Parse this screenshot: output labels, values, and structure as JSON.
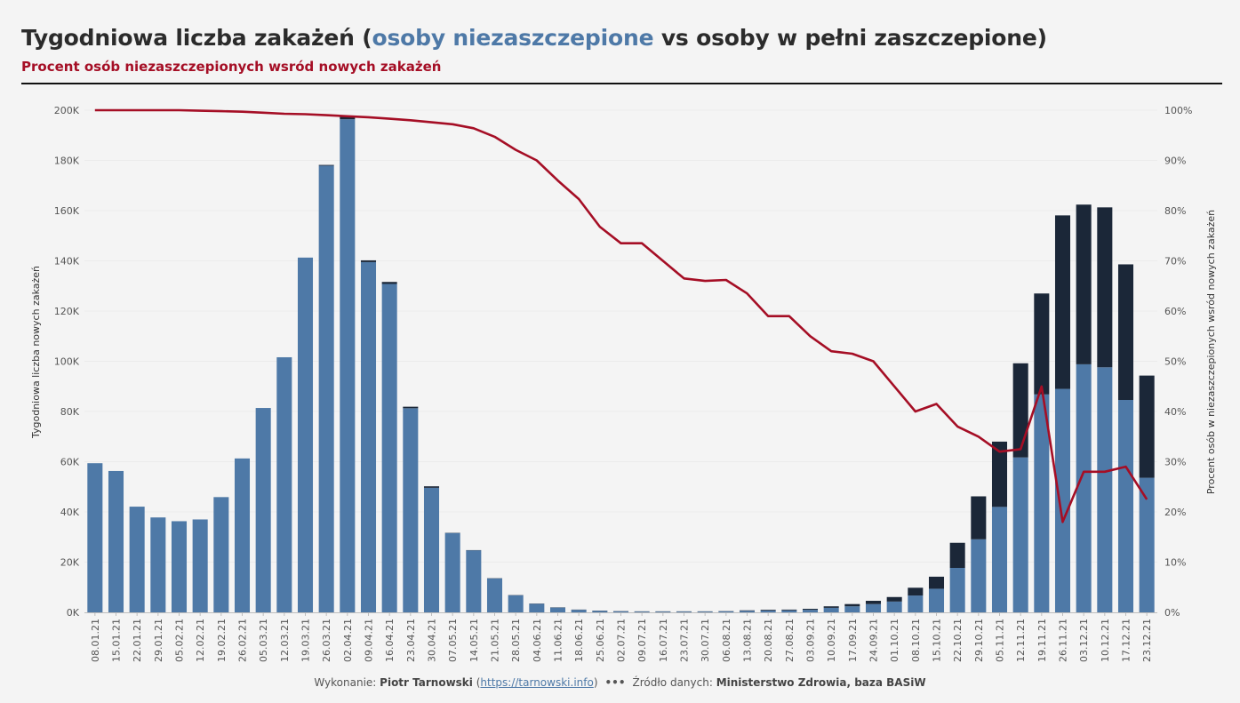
{
  "header": {
    "title_part1": "Tygodniowa liczba zakażeń (",
    "title_highlight": "osoby niezaszczepione",
    "title_part2": " vs osoby w pełni zaszczepione)",
    "subtitle": "Procent osób niezaszczepionych wsród nowych zakażeń"
  },
  "footer": {
    "made_by_label": "Wykonanie: ",
    "author": "Piotr Tarnowski",
    "link_open": "  (",
    "link": "https://tarnowski.info",
    "link_close": ")",
    "separator": "•••",
    "source_label": "Źródło danych: ",
    "source": "Ministerstwo Zdrowia, baza BASiW"
  },
  "colors": {
    "unvaccinated": "#4e79a7",
    "vaccinated": "#1b2738",
    "percent_line": "#a50e25",
    "text": "#555555"
  },
  "chart_data": {
    "type": "bar",
    "stacked": true,
    "ylabel": "Tygodniowa liczba nowych zakażeń",
    "y2label": "Procent osób w niezaszczepionych wsród nowych zakażeń",
    "ylim": [
      0,
      200000
    ],
    "y2lim": [
      0,
      100
    ],
    "yticks": [
      "0K",
      "20K",
      "40K",
      "60K",
      "80K",
      "100K",
      "120K",
      "140K",
      "160K",
      "180K",
      "200K"
    ],
    "y2ticks": [
      "0%",
      "10%",
      "20%",
      "30%",
      "40%",
      "50%",
      "60%",
      "70%",
      "80%",
      "90%",
      "100%"
    ],
    "grid": true,
    "categories": [
      "08.01.21",
      "15.01.21",
      "22.01.21",
      "29.01.21",
      "05.02.21",
      "12.02.21",
      "19.02.21",
      "26.02.21",
      "05.03.21",
      "12.03.21",
      "19.03.21",
      "26.03.21",
      "02.04.21",
      "09.04.21",
      "16.04.21",
      "23.04.21",
      "30.04.21",
      "07.05.21",
      "14.05.21",
      "21.05.21",
      "28.05.21",
      "04.06.21",
      "11.06.21",
      "18.06.21",
      "25.06.21",
      "02.07.21",
      "09.07.21",
      "16.07.21",
      "23.07.21",
      "30.07.21",
      "06.08.21",
      "13.08.21",
      "20.08.21",
      "27.08.21",
      "03.09.21",
      "10.09.21",
      "17.09.21",
      "24.09.21",
      "01.10.21",
      "08.10.21",
      "15.10.21",
      "22.10.21",
      "29.10.21",
      "05.11.21",
      "12.11.21",
      "19.11.21",
      "26.11.21",
      "03.12.21",
      "10.12.21",
      "17.12.21",
      "23.12.21"
    ],
    "series": [
      {
        "name": "osoby niezaszczepione",
        "type": "bar",
        "values": [
          59400,
          56300,
          42100,
          37800,
          36300,
          37000,
          45900,
          61300,
          81400,
          101600,
          141300,
          177900,
          196400,
          139500,
          130800,
          81300,
          49600,
          31600,
          24700,
          13500,
          6800,
          3400,
          1900,
          1000,
          600,
          400,
          300,
          300,
          300,
          300,
          400,
          600,
          700,
          800,
          1000,
          1800,
          2400,
          3300,
          4300,
          6700,
          9400,
          17700,
          29100,
          42000,
          61700,
          86800,
          89000,
          98800,
          97600,
          84600,
          53600
        ]
      },
      {
        "name": "osoby w pełni zaszczepione",
        "type": "bar",
        "values": [
          0,
          0,
          0,
          0,
          0,
          0,
          0,
          0,
          0,
          0,
          0,
          300,
          1100,
          700,
          800,
          600,
          600,
          100,
          100,
          100,
          100,
          100,
          100,
          100,
          100,
          100,
          100,
          100,
          100,
          100,
          100,
          200,
          300,
          300,
          400,
          600,
          900,
          1300,
          1800,
          3100,
          4800,
          10000,
          17100,
          26000,
          37500,
          40200,
          69100,
          63600,
          63700,
          54000,
          40700
        ]
      },
      {
        "name": "",
        "type": "line",
        "axis": "right",
        "values": [
          100,
          100,
          100,
          100,
          100,
          99.9,
          99.8,
          99.7,
          99.5,
          99.3,
          99.2,
          99.0,
          98.8,
          98.6,
          98.3,
          98.0,
          97.6,
          97.2,
          96.4,
          94.7,
          92.1,
          90.0,
          86.0,
          82.3,
          76.8,
          73.5,
          73.5,
          70.0,
          66.5,
          66.0,
          66.2,
          63.5,
          59.0,
          59.0,
          55.0,
          52.0,
          51.5,
          50.0,
          45.0,
          40.0,
          41.5,
          37.0,
          35.0,
          32.0,
          32.5,
          45.0,
          18.0,
          28.0,
          28.0,
          29.0,
          22.5
        ]
      }
    ]
  }
}
